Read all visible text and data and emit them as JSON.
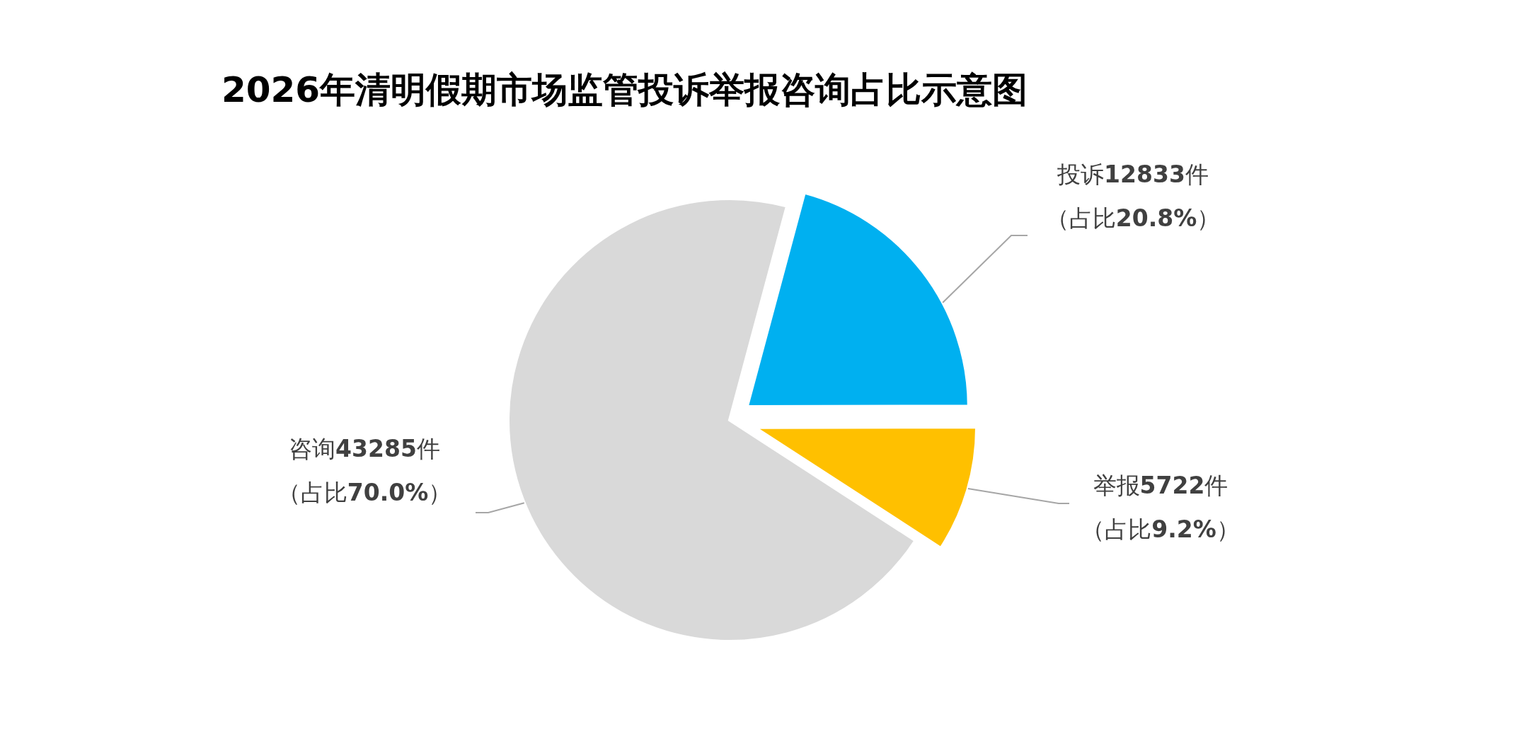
{
  "chart_data": {
    "type": "pie",
    "title": "2026年清明假期市场监管投诉举报咨询占比示意图",
    "categories": [
      "投诉",
      "举报",
      "咨询"
    ],
    "values": [
      20.8,
      9.2,
      70.0
    ],
    "value_labels": [
      "12833件（占比20.8%）",
      "5722件（占比9.2%）",
      "43285件（占比70.0%）"
    ],
    "colors": [
      "#00b0f0",
      "#ffc000",
      "#d9d9d9"
    ]
  }
}
